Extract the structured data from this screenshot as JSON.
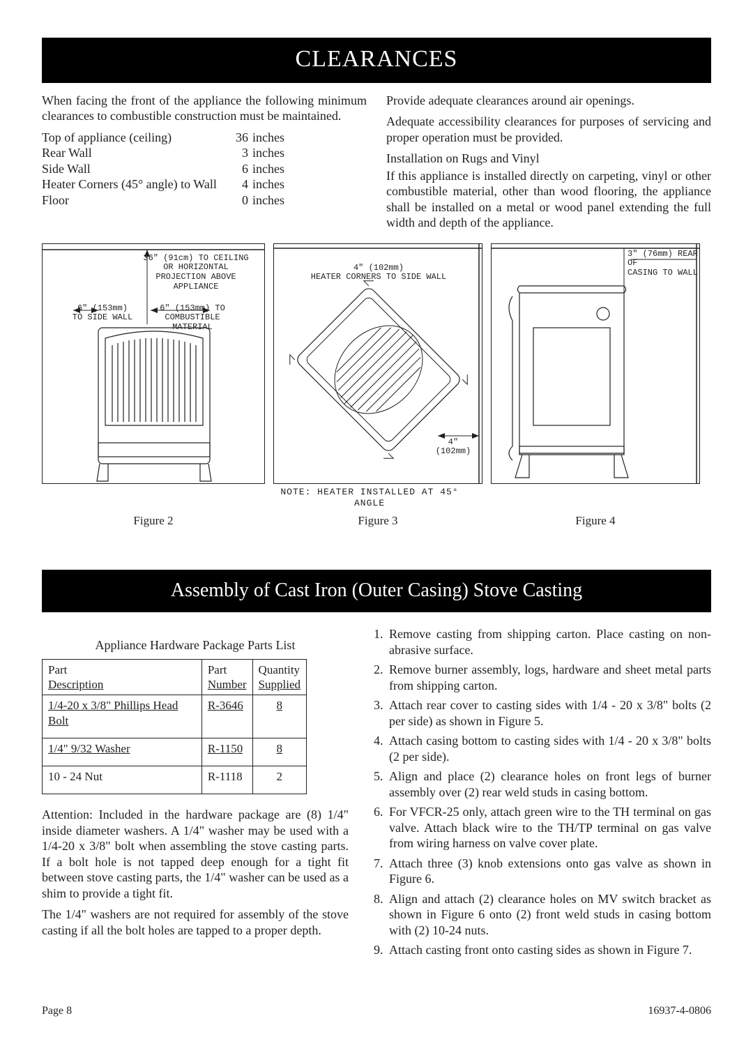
{
  "colors": {
    "text": "#231f20",
    "bg": "#ffffff",
    "banner_bg": "#000000",
    "banner_fg": "#ffffff",
    "rule": "#231f20"
  },
  "banner1": "CLEARANCES",
  "banner2": "Assembly of Cast Iron (Outer Casing) Stove Casting",
  "intro_left": "When facing the front of the appliance the following minimum clearances to combustible construction must be maintained.",
  "clearances": [
    {
      "label": "Top of appliance (ceiling)",
      "value": "36",
      "unit": "inches"
    },
    {
      "label": "Rear Wall",
      "value": "3",
      "unit": "inches"
    },
    {
      "label": "Side Wall",
      "value": "6",
      "unit": "inches"
    },
    {
      "label": "Heater Corners (45° angle) to Wall",
      "value": "4",
      "unit": "inches"
    },
    {
      "label": "Floor",
      "value": "0",
      "unit": "inches"
    }
  ],
  "right_p1": "Provide adequate clearances around air openings.",
  "right_p2": "Adequate accessibility clearances for purposes of servicing and proper operation must be provided.",
  "right_sub": "Installation on Rugs and Vinyl",
  "right_p3": "If this appliance is installed directly on carpeting, vinyl or other combustible material, other than wood flooring, the appliance shall be installed on a metal or wood panel extending the full width and depth of the appliance.",
  "fig1_labels": {
    "ceiling": "36\" (91cm) TO CEILING\nOR HORIZONTAL\nPROJECTION ABOVE\nAPPLIANCE",
    "side_left": "6\" (153mm)\nTO SIDE WALL",
    "side_right": "6\" (153mm) TO\nCOMBUSTIBLE\nMATERIAL"
  },
  "fig2_labels": {
    "top": "4\" (102mm)\nHEATER CORNERS TO SIDE WALL",
    "bottom": "4\"\n(102mm)",
    "note": "NOTE: HEATER INSTALLED AT 45° ANGLE"
  },
  "fig3_labels": {
    "top": "3\" (76mm) REAR OF\nCASING TO WALL"
  },
  "fig_captions": {
    "f1": "Figure 2",
    "f2": "Figure 3",
    "f3": "Figure 4"
  },
  "parts_title": "Appliance Hardware Package Parts List",
  "parts_headers": {
    "desc": "Part\nDescription",
    "num": "Part\nNumber",
    "qty": "Quantity\nSupplied"
  },
  "parts_rows": [
    {
      "desc": "1/4-20 x 3/8\" Phillips Head Bolt",
      "num": "R-3646",
      "qty": "8",
      "u": true
    },
    {
      "desc": "1/4\"  9/32 Washer",
      "num": "R-1150",
      "qty": "8",
      "u": true
    },
    {
      "desc": "10 - 24 Nut",
      "num": "R-1118",
      "qty": "2",
      "u": false
    }
  ],
  "attention_p1": "Attention: Included in the hardware package are (8) 1/4\" inside diameter washers. A 1/4\" washer may be used with a 1/4-20 x 3/8\" bolt when assembling the stove casting parts. If a bolt hole is not tapped deep enough for a tight fit between stove casting parts, the 1/4\" washer can be used as a shim to provide a tight fit.",
  "attention_p2": "The 1/4\" washers are not required for assembly of the stove casting if all the bolt holes are tapped to a proper depth.",
  "steps": [
    "Remove casting from shipping carton. Place casting on non-abrasive surface.",
    "Remove burner assembly, logs, hardware and sheet metal parts from shipping carton.",
    "Attach rear cover to casting sides with  1/4 - 20 x 3/8\" bolts (2 per side) as shown in Figure 5.",
    "Attach casing bottom to casting sides with 1/4 - 20 x 3/8\" bolts (2 per side).",
    "Align and place (2) clearance holes on front legs of burner assembly over (2) rear weld studs in casing bottom.",
    "For VFCR-25 only, attach green wire to the TH terminal on gas valve. Attach black wire to the TH/TP terminal on gas valve from wiring harness on valve cover plate.",
    "Attach three (3) knob extensions onto gas valve as shown in Figure 6.",
    "Align and attach (2) clearance holes on MV switch bracket as shown in Figure 6 onto (2) front weld studs in casing bottom with (2) 10-24 nuts.",
    "Attach casting front onto casting sides as shown in Figure 7."
  ],
  "footer": {
    "left": "Page 8",
    "right": "16937-4-0806"
  }
}
